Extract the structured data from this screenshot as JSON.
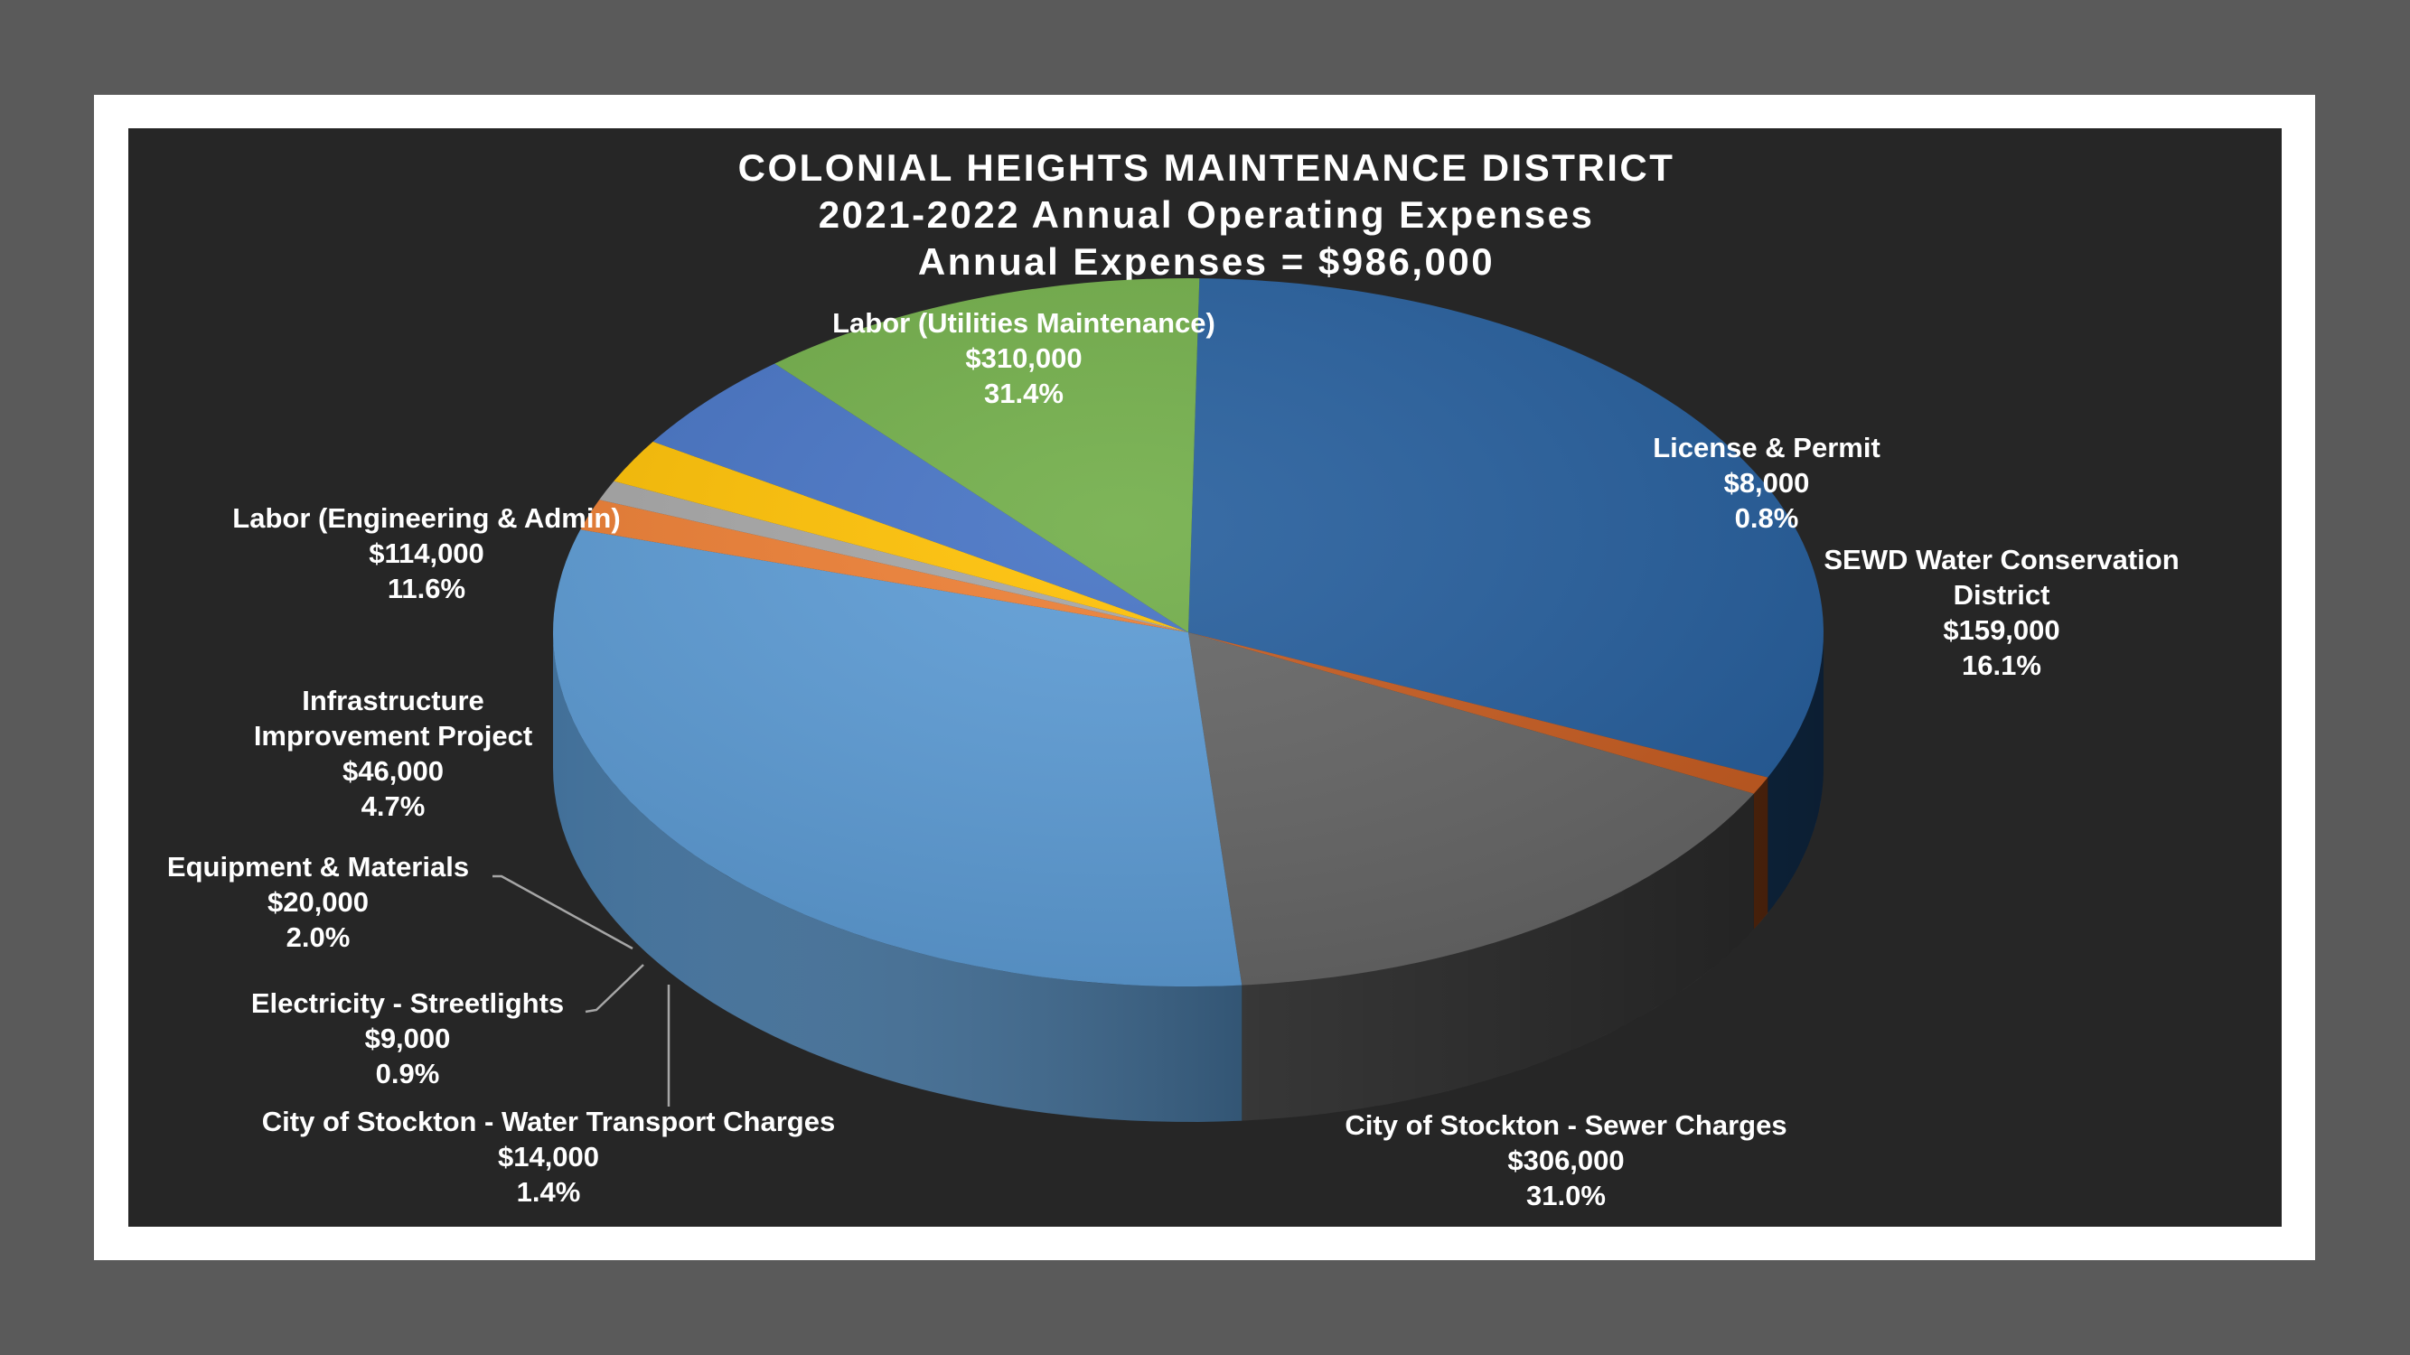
{
  "chart_data": {
    "type": "pie",
    "title_lines": [
      "COLONIAL HEIGHTS MAINTENANCE DISTRICT",
      "2021-2022 Annual Operating Expenses",
      "Annual Expenses = $986,000"
    ],
    "legend": "none",
    "slices": [
      {
        "name_lines": [
          "Labor (Utilities Maintenance)"
        ],
        "value_label": "$310,000",
        "percent_label": "31.4%",
        "value": 310000,
        "percent": 31.4,
        "color": "#245d9c"
      },
      {
        "name_lines": [
          "License & Permit"
        ],
        "value_label": "$8,000",
        "percent_label": "0.8%",
        "value": 8000,
        "percent": 0.8,
        "color": "#c65a1e"
      },
      {
        "name_lines": [
          "SEWD Water Conservation",
          "District"
        ],
        "value_label": "$159,000",
        "percent_label": "16.1%",
        "value": 159000,
        "percent": 16.1,
        "color": "#656565"
      },
      {
        "name_lines": [
          "City of Stockton - Sewer Charges"
        ],
        "value_label": "$306,000",
        "percent_label": "31.0%",
        "value": 306000,
        "percent": 31.0,
        "color": "#5b9bd5"
      },
      {
        "name_lines": [
          "City of Stockton - Water Transport Charges"
        ],
        "value_label": "$14,000",
        "percent_label": "1.4%",
        "value": 14000,
        "percent": 1.4,
        "color": "#ed7d31"
      },
      {
        "name_lines": [
          "Electricity - Streetlights"
        ],
        "value_label": "$9,000",
        "percent_label": "0.9%",
        "value": 9000,
        "percent": 0.9,
        "color": "#a5a5a5"
      },
      {
        "name_lines": [
          "Equipment & Materials"
        ],
        "value_label": "$20,000",
        "percent_label": "2.0%",
        "value": 20000,
        "percent": 2.0,
        "color": "#ffc000"
      },
      {
        "name_lines": [
          "Infrastructure",
          "Improvement Project"
        ],
        "value_label": "$46,000",
        "percent_label": "4.7%",
        "value": 46000,
        "percent": 4.7,
        "color": "#4472c4"
      },
      {
        "name_lines": [
          "Labor (Engineering & Admin)"
        ],
        "value_label": "$114,000",
        "percent_label": "11.6%",
        "value": 114000,
        "percent": 11.6,
        "color": "#70ad47"
      }
    ]
  }
}
